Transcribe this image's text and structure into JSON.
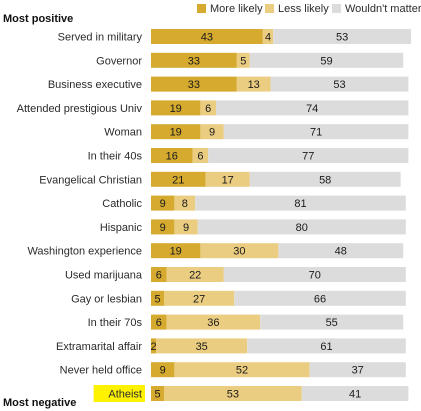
{
  "section_top": "Most positive",
  "section_bottom": "Most negative",
  "highlight_color": "#fff200",
  "highlight_category_index": 15,
  "chart_data": {
    "type": "bar",
    "orientation": "horizontal",
    "stacked": true,
    "legend_position": "top",
    "xlim": [
      0,
      100
    ],
    "categories": [
      "Served in military",
      "Governor",
      "Business executive",
      "Attended prestigious Univ",
      "Woman",
      "In their 40s",
      "Evangelical Christian",
      "Catholic",
      "Hispanic",
      "Washington experience",
      "Used marijuana",
      "Gay or lesbian",
      "In their 70s",
      "Extramarital affair",
      "Never held office",
      "Atheist"
    ],
    "series": [
      {
        "name": "More likely",
        "color": "#d5aa2f",
        "values": [
          43,
          33,
          33,
          19,
          19,
          16,
          21,
          9,
          9,
          19,
          6,
          5,
          6,
          2,
          9,
          5
        ]
      },
      {
        "name": "Less likely",
        "color": "#ebcd82",
        "values": [
          4,
          5,
          13,
          6,
          9,
          6,
          17,
          8,
          9,
          30,
          22,
          27,
          36,
          35,
          52,
          53
        ]
      },
      {
        "name": "Wouldn't matter",
        "color": "#dcdcdc",
        "values": [
          53,
          59,
          53,
          74,
          71,
          77,
          58,
          81,
          80,
          48,
          70,
          66,
          55,
          61,
          37,
          41
        ]
      }
    ]
  }
}
